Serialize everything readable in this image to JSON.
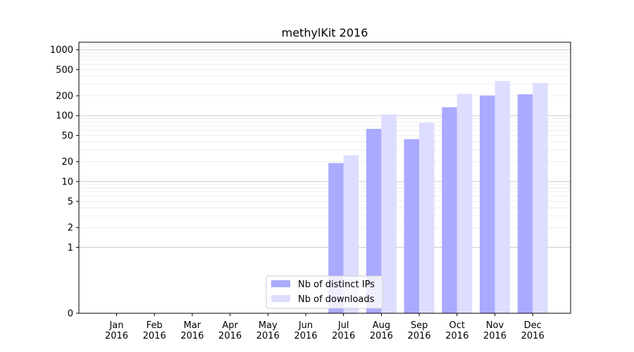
{
  "chart_data": {
    "type": "bar",
    "title": "methylKit 2016",
    "xlabel": "",
    "ylabel": "",
    "yscale": "symlog",
    "ylim": [
      0,
      1300
    ],
    "yticks": [
      0,
      1,
      2,
      5,
      10,
      20,
      50,
      100,
      200,
      500,
      1000
    ],
    "categories": [
      "Jan\n2016",
      "Feb\n2016",
      "Mar\n2016",
      "Apr\n2016",
      "May\n2016",
      "Jun\n2016",
      "Jul\n2016",
      "Aug\n2016",
      "Sep\n2016",
      "Oct\n2016",
      "Nov\n2016",
      "Dec\n2016"
    ],
    "series": [
      {
        "name": "Nb of distinct IPs",
        "color": "#aaaaff",
        "values": [
          0,
          0,
          0,
          0,
          0,
          0,
          19,
          63,
          44,
          134,
          202,
          211
        ]
      },
      {
        "name": "Nb of downloads",
        "color": "#ddddff",
        "values": [
          0,
          0,
          0,
          0,
          0,
          0,
          25,
          104,
          78,
          214,
          335,
          313
        ]
      }
    ],
    "grid": true,
    "legend_position": "bottom-center"
  }
}
